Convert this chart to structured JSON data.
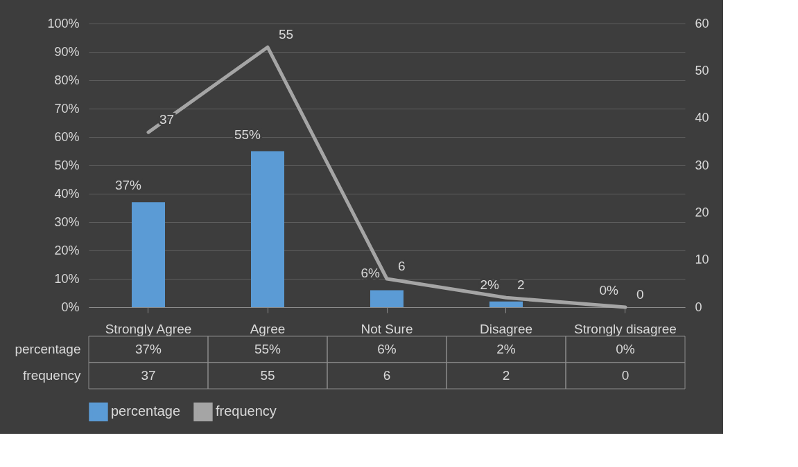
{
  "chart_data": {
    "type": "bar",
    "categories": [
      "Strongly Agree",
      "Agree",
      "Not Sure",
      "Disagree",
      "Strongly disagree"
    ],
    "series": [
      {
        "name": "percentage",
        "color": "#5b9bd5",
        "values": [
          37,
          55,
          6,
          2,
          0
        ],
        "value_labels": [
          "37%",
          "55%",
          "6%",
          "2%",
          "0%"
        ]
      },
      {
        "name": "frequency",
        "type": "line",
        "axis": "y2",
        "color": "#a5a5a5",
        "values": [
          37,
          55,
          6,
          2,
          0
        ],
        "value_labels": [
          "37",
          "55",
          "6",
          "2",
          "0"
        ]
      }
    ],
    "ylim": [
      0,
      100
    ],
    "yticks": [
      {
        "value": 0,
        "label": "0%"
      },
      {
        "value": 10,
        "label": "10%"
      },
      {
        "value": 20,
        "label": "20%"
      },
      {
        "value": 30,
        "label": "30%"
      },
      {
        "value": 40,
        "label": "40%"
      },
      {
        "value": 50,
        "label": "50%"
      },
      {
        "value": 60,
        "label": "60%"
      },
      {
        "value": 70,
        "label": "70%"
      },
      {
        "value": 80,
        "label": "80%"
      },
      {
        "value": 90,
        "label": "90%"
      },
      {
        "value": 100,
        "label": "100%"
      }
    ],
    "y2lim": [
      0,
      60
    ],
    "y2ticks": [
      0,
      10,
      20,
      30,
      40,
      50,
      60
    ],
    "grid": "y",
    "legend": "bottom"
  }
}
